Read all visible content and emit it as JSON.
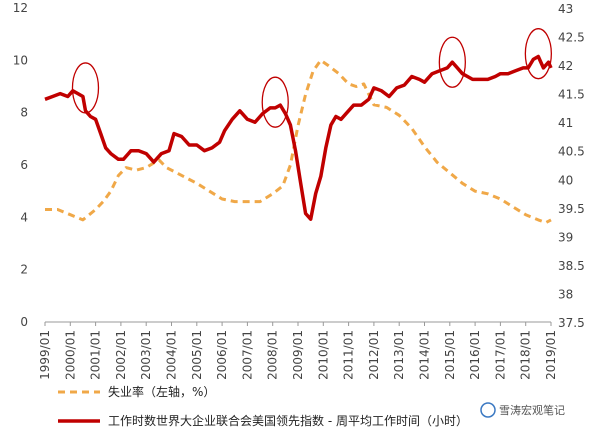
{
  "chart_data": {
    "type": "line",
    "title": "",
    "x_tick_labels": [
      "1999/01",
      "2000/01",
      "2001/01",
      "2002/01",
      "2003/01",
      "2004/01",
      "2005/01",
      "2006/01",
      "2007/01",
      "2008/01",
      "2009/01",
      "2010/01",
      "2011/01",
      "2012/01",
      "2013/01",
      "2014/01",
      "2015/01",
      "2016/01",
      "2017/01",
      "2018/01",
      "2019/01"
    ],
    "x_range": [
      1999.0,
      2019.0
    ],
    "left_axis": {
      "ticks": [
        "0",
        "2",
        "4",
        "6",
        "8",
        "10",
        "12"
      ],
      "ylim": [
        0,
        12
      ]
    },
    "right_axis": {
      "ticks": [
        "37.5",
        "38",
        "38.5",
        "39",
        "39.5",
        "40",
        "40.5",
        "41",
        "41.5",
        "42",
        "42.5",
        "43"
      ],
      "ylim": [
        37.5,
        43
      ]
    },
    "grid": false,
    "legend_position": "bottom",
    "series": [
      {
        "name": "失业率（左轴，%）",
        "axis": "left",
        "color": "#f0a848",
        "style": "dashed",
        "points": [
          [
            1999.0,
            4.3
          ],
          [
            1999.5,
            4.3
          ],
          [
            2000.0,
            4.1
          ],
          [
            2000.5,
            3.9
          ],
          [
            2001.0,
            4.3
          ],
          [
            2001.3,
            4.6
          ],
          [
            2001.6,
            5.0
          ],
          [
            2001.9,
            5.6
          ],
          [
            2002.2,
            5.9
          ],
          [
            2002.6,
            5.8
          ],
          [
            2003.0,
            5.9
          ],
          [
            2003.5,
            6.2
          ],
          [
            2003.8,
            5.9
          ],
          [
            2004.2,
            5.7
          ],
          [
            2004.6,
            5.5
          ],
          [
            2005.0,
            5.3
          ],
          [
            2005.5,
            5.0
          ],
          [
            2006.0,
            4.7
          ],
          [
            2006.5,
            4.6
          ],
          [
            2007.0,
            4.6
          ],
          [
            2007.5,
            4.6
          ],
          [
            2008.0,
            4.9
          ],
          [
            2008.4,
            5.2
          ],
          [
            2008.7,
            6.0
          ],
          [
            2009.0,
            7.5
          ],
          [
            2009.3,
            8.7
          ],
          [
            2009.6,
            9.6
          ],
          [
            2009.9,
            10.0
          ],
          [
            2010.2,
            9.8
          ],
          [
            2010.6,
            9.5
          ],
          [
            2011.0,
            9.1
          ],
          [
            2011.3,
            9.0
          ],
          [
            2011.6,
            9.1
          ],
          [
            2012.0,
            8.3
          ],
          [
            2012.5,
            8.2
          ],
          [
            2013.0,
            7.9
          ],
          [
            2013.5,
            7.4
          ],
          [
            2014.0,
            6.7
          ],
          [
            2014.5,
            6.1
          ],
          [
            2015.0,
            5.7
          ],
          [
            2015.5,
            5.3
          ],
          [
            2016.0,
            5.0
          ],
          [
            2016.5,
            4.9
          ],
          [
            2017.0,
            4.7
          ],
          [
            2017.5,
            4.4
          ],
          [
            2018.0,
            4.1
          ],
          [
            2018.5,
            3.9
          ],
          [
            2018.8,
            3.8
          ],
          [
            2019.0,
            3.9
          ]
        ]
      },
      {
        "name": "工作时数世界大企业联合会美国领先指数 - 周平均工作时间（小时）",
        "axis": "right",
        "color": "#c00000",
        "style": "solid",
        "points": [
          [
            1999.0,
            41.4
          ],
          [
            1999.3,
            41.45
          ],
          [
            1999.6,
            41.5
          ],
          [
            1999.9,
            41.45
          ],
          [
            2000.1,
            41.55
          ],
          [
            2000.3,
            41.5
          ],
          [
            2000.5,
            41.45
          ],
          [
            2000.6,
            41.2
          ],
          [
            2000.8,
            41.1
          ],
          [
            2001.0,
            41.05
          ],
          [
            2001.2,
            40.8
          ],
          [
            2001.4,
            40.55
          ],
          [
            2001.6,
            40.45
          ],
          [
            2001.9,
            40.35
          ],
          [
            2002.1,
            40.35
          ],
          [
            2002.4,
            40.5
          ],
          [
            2002.7,
            40.5
          ],
          [
            2003.0,
            40.45
          ],
          [
            2003.3,
            40.3
          ],
          [
            2003.6,
            40.45
          ],
          [
            2003.9,
            40.5
          ],
          [
            2004.1,
            40.8
          ],
          [
            2004.4,
            40.75
          ],
          [
            2004.7,
            40.6
          ],
          [
            2005.0,
            40.6
          ],
          [
            2005.3,
            40.5
          ],
          [
            2005.6,
            40.55
          ],
          [
            2005.9,
            40.65
          ],
          [
            2006.1,
            40.85
          ],
          [
            2006.4,
            41.05
          ],
          [
            2006.7,
            41.2
          ],
          [
            2007.0,
            41.05
          ],
          [
            2007.3,
            41.0
          ],
          [
            2007.6,
            41.15
          ],
          [
            2007.9,
            41.25
          ],
          [
            2008.1,
            41.25
          ],
          [
            2008.3,
            41.3
          ],
          [
            2008.5,
            41.15
          ],
          [
            2008.7,
            40.95
          ],
          [
            2008.9,
            40.5
          ],
          [
            2009.1,
            39.95
          ],
          [
            2009.3,
            39.4
          ],
          [
            2009.5,
            39.3
          ],
          [
            2009.7,
            39.75
          ],
          [
            2009.9,
            40.05
          ],
          [
            2010.1,
            40.55
          ],
          [
            2010.3,
            40.95
          ],
          [
            2010.5,
            41.1
          ],
          [
            2010.7,
            41.05
          ],
          [
            2010.9,
            41.15
          ],
          [
            2011.2,
            41.3
          ],
          [
            2011.5,
            41.3
          ],
          [
            2011.8,
            41.4
          ],
          [
            2012.0,
            41.6
          ],
          [
            2012.3,
            41.55
          ],
          [
            2012.6,
            41.45
          ],
          [
            2012.9,
            41.6
          ],
          [
            2013.2,
            41.65
          ],
          [
            2013.5,
            41.8
          ],
          [
            2013.8,
            41.75
          ],
          [
            2014.0,
            41.7
          ],
          [
            2014.3,
            41.85
          ],
          [
            2014.6,
            41.9
          ],
          [
            2014.9,
            41.95
          ],
          [
            2015.1,
            42.05
          ],
          [
            2015.3,
            41.95
          ],
          [
            2015.5,
            41.85
          ],
          [
            2015.7,
            41.8
          ],
          [
            2015.9,
            41.75
          ],
          [
            2016.2,
            41.75
          ],
          [
            2016.5,
            41.75
          ],
          [
            2016.8,
            41.8
          ],
          [
            2017.0,
            41.85
          ],
          [
            2017.3,
            41.85
          ],
          [
            2017.6,
            41.9
          ],
          [
            2017.9,
            41.95
          ],
          [
            2018.1,
            41.95
          ],
          [
            2018.3,
            42.1
          ],
          [
            2018.5,
            42.15
          ],
          [
            2018.7,
            41.95
          ],
          [
            2018.9,
            42.05
          ],
          [
            2019.0,
            41.95
          ]
        ]
      }
    ],
    "annotations": [
      {
        "shape": "ellipse",
        "x": 2000.6,
        "y_right": 41.6
      },
      {
        "shape": "ellipse",
        "x": 2008.1,
        "y_right": 41.35
      },
      {
        "shape": "ellipse",
        "x": 2015.1,
        "y_right": 42.05
      },
      {
        "shape": "ellipse",
        "x": 2018.5,
        "y_right": 42.2
      }
    ]
  },
  "legend": {
    "unemployment_label": "失业率（左轴，%）",
    "hours_label": "工作时数世界大企业联合会美国领先指数 - 周平均工作时间（小时）"
  },
  "watermark": {
    "text": "雪涛宏观笔记"
  }
}
